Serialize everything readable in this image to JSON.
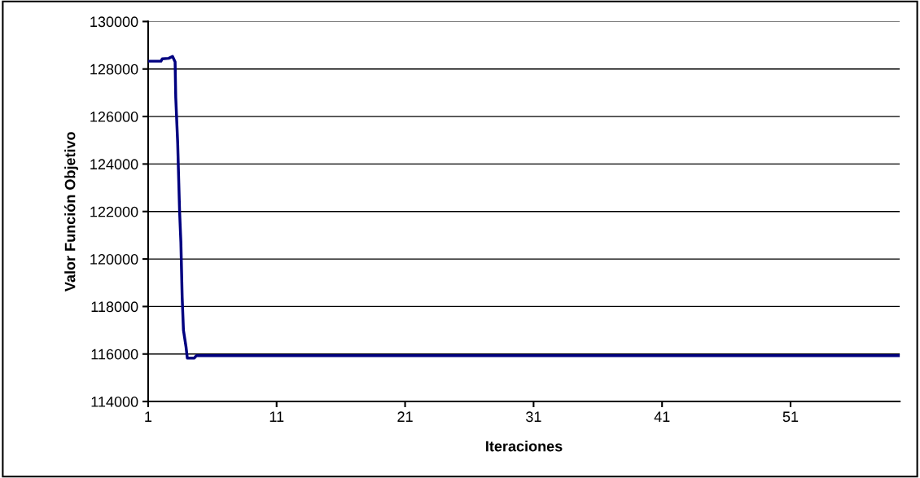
{
  "chart_data": {
    "type": "line",
    "xlabel": "Iteraciones",
    "ylabel": "Valor Función Objetivo",
    "series": [
      {
        "color": "#000080",
        "x": [
          1,
          2.0,
          2.1,
          2.6,
          2.9,
          3.1,
          3.15,
          3.3,
          3.45,
          3.55,
          3.65,
          3.75,
          3.95,
          4.05,
          4.6,
          4.75,
          59.5
        ],
        "values": [
          128330,
          128330,
          128430,
          128450,
          128530,
          128300,
          126800,
          124900,
          122000,
          120700,
          118400,
          117000,
          116300,
          115830,
          115830,
          115930,
          115930
        ]
      }
    ],
    "xlim": [
      1,
      59.5
    ],
    "xticks": [
      1,
      11,
      21,
      31,
      41,
      51
    ],
    "ylim": [
      114000,
      130000
    ],
    "yticks": [
      114000,
      116000,
      118000,
      120000,
      122000,
      124000,
      126000,
      128000,
      130000
    ],
    "grid": "y",
    "legend": false,
    "marker": "none",
    "line_style": "solid"
  }
}
